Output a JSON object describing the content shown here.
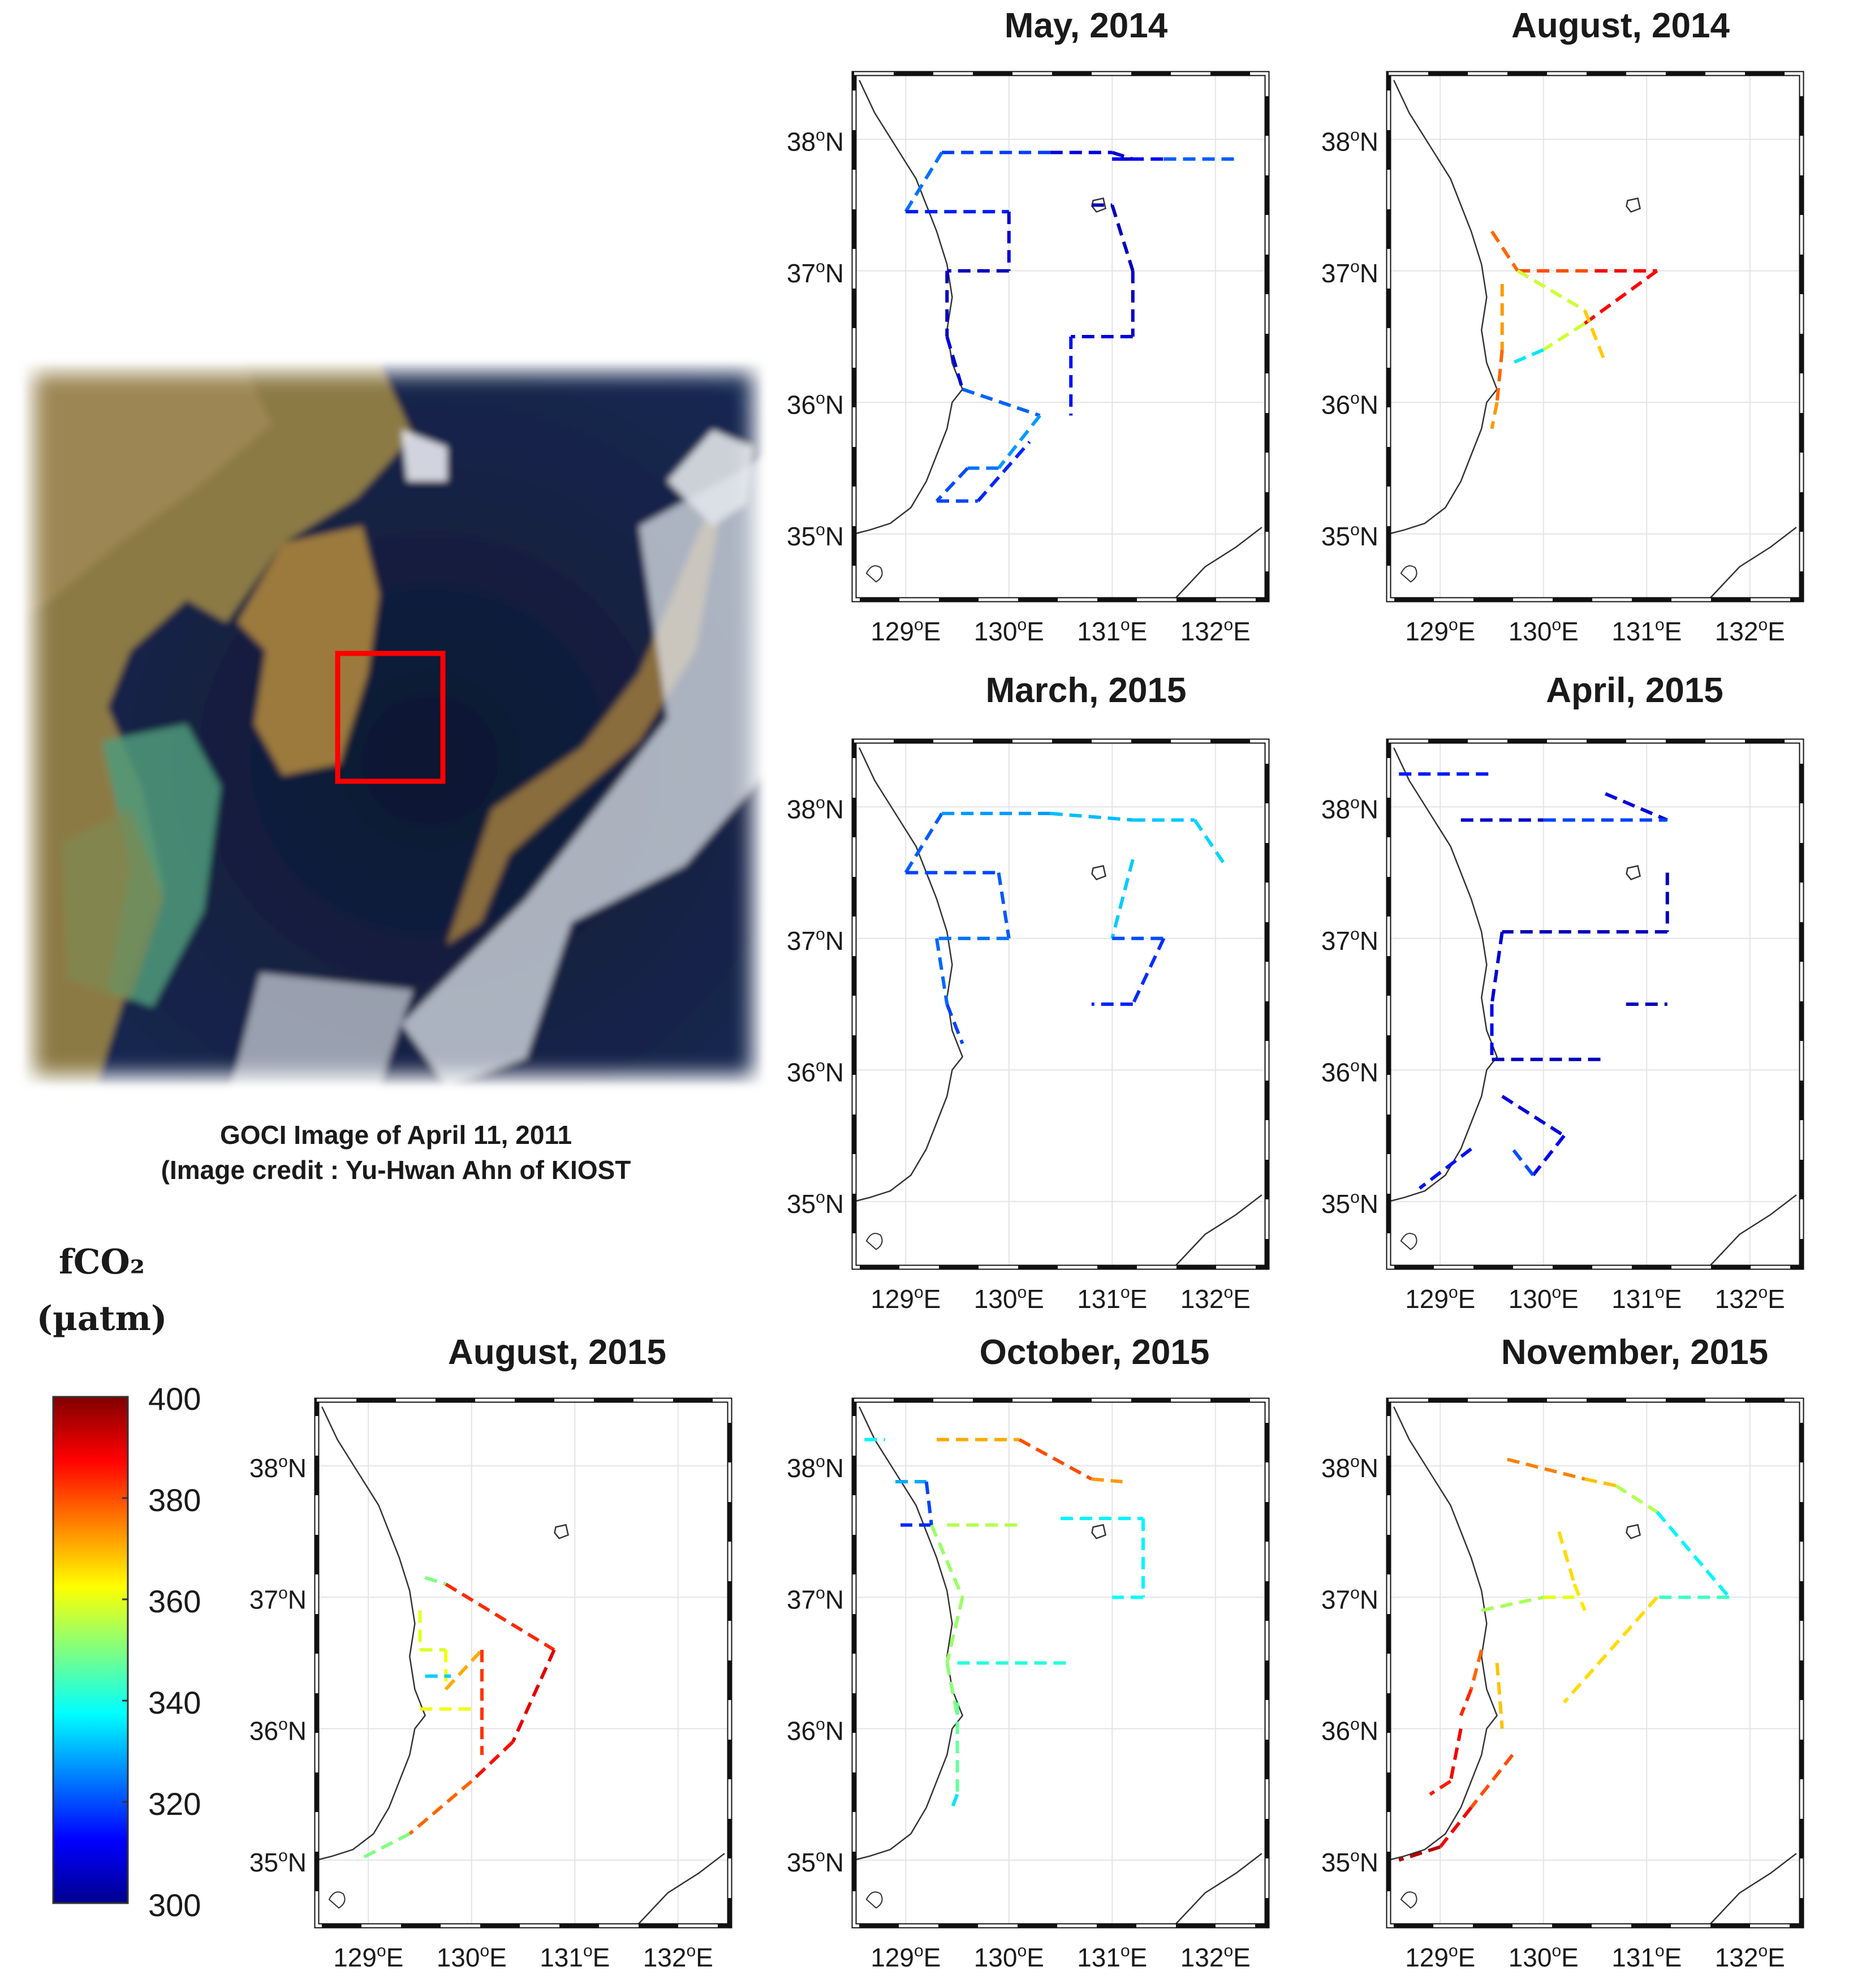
{
  "figure": {
    "caption": {
      "line1": "GOCI Image of April 11, 2011",
      "line2": "(Image credit : Yu-Hwan Ahn of KIOST"
    },
    "colorbar": {
      "quantity": "fCO₂",
      "unit": "(µatm)",
      "range": [
        300,
        400
      ],
      "ticks": [
        "400",
        "380",
        "360",
        "340",
        "320",
        "300"
      ],
      "colormap": [
        "#00008f",
        "#0000ff",
        "#0080ff",
        "#00ffff",
        "#80ff80",
        "#ffff00",
        "#ff8000",
        "#ff0000",
        "#800000"
      ]
    },
    "satellite_image": {
      "subject": "GOCI satellite image of Korea, Japan and East Sea",
      "highlight_color": "#ff0000"
    },
    "axis_labels": {
      "lat": [
        "38",
        "37",
        "36",
        "35"
      ],
      "lat_suffix": "N",
      "lon": [
        "129",
        "130",
        "131",
        "132"
      ],
      "lon_suffix": "E",
      "degree": "o"
    },
    "chart_data": [
      {
        "type": "scatter",
        "title": "May, 2014",
        "xlim": [
          128.5,
          132.5
        ],
        "ylim": [
          34.5,
          38.5
        ],
        "tracks": [
          {
            "lon": [
              129.0,
              129.35,
              130.4,
              131.0,
              131.2,
              131.0,
              131.5,
              132.2
            ],
            "lat": [
              37.45,
              37.9,
              37.9,
              37.9,
              37.85,
              37.85,
              37.85,
              37.85
            ],
            "fco2": [
              322,
              325,
              312,
              305,
              308,
              304,
              318,
              325
            ]
          },
          {
            "lon": [
              129.0,
              130.0,
              130.0,
              129.4,
              129.4,
              129.55
            ],
            "lat": [
              37.45,
              37.45,
              37.0,
              37.0,
              36.5,
              36.1
            ],
            "fco2": [
              320,
              310,
              306,
              304,
              308,
              310
            ]
          },
          {
            "lon": [
              130.8,
              131.0,
              131.2,
              131.2,
              130.6,
              130.6
            ],
            "lat": [
              37.5,
              37.5,
              37.0,
              36.5,
              36.5,
              35.9
            ],
            "fco2": [
              304,
              304,
              306,
              306,
              310,
              318
            ]
          },
          {
            "lon": [
              129.55,
              130.3,
              129.9,
              129.6,
              129.3,
              129.7,
              130.2
            ],
            "lat": [
              36.1,
              35.9,
              35.5,
              35.5,
              35.25,
              35.25,
              35.7
            ],
            "fco2": [
              314,
              330,
              325,
              322,
              318,
              320,
              312
            ]
          }
        ]
      },
      {
        "type": "scatter",
        "title": "August, 2014",
        "xlim": [
          128.5,
          132.5
        ],
        "ylim": [
          34.5,
          38.5
        ],
        "tracks": [
          {
            "lon": [
              129.5,
              129.75,
              130.5,
              131.1
            ],
            "lat": [
              37.3,
              37.0,
              37.0,
              37.0
            ],
            "fco2": [
              380,
              375,
              385,
              392
            ]
          },
          {
            "lon": [
              131.1,
              130.4,
              130.0,
              129.7
            ],
            "lat": [
              37.0,
              36.6,
              36.4,
              36.3
            ],
            "fco2": [
              390,
              385,
              330,
              340
            ]
          },
          {
            "lon": [
              129.75,
              130.4,
              130.6
            ],
            "lat": [
              37.0,
              36.7,
              36.3
            ],
            "fco2": [
              360,
              355,
              380
            ]
          },
          {
            "lon": [
              129.6,
              129.6,
              129.55,
              129.5
            ],
            "lat": [
              36.9,
              36.4,
              36.0,
              35.8
            ],
            "fco2": [
              370,
              375,
              380,
              365
            ]
          }
        ]
      },
      {
        "type": "scatter",
        "title": "March, 2015",
        "xlim": [
          128.5,
          132.5
        ],
        "ylim": [
          34.5,
          38.5
        ],
        "tracks": [
          {
            "lon": [
              129.0,
              129.35,
              130.4,
              131.2,
              131.8,
              132.1
            ],
            "lat": [
              37.5,
              37.95,
              37.95,
              37.9,
              37.9,
              37.55
            ],
            "fco2": [
              318,
              325,
              330,
              332,
              332,
              335
            ]
          },
          {
            "lon": [
              129.0,
              129.9,
              130.0,
              129.3,
              129.4,
              129.55
            ],
            "lat": [
              37.5,
              37.5,
              37.0,
              37.0,
              36.5,
              36.2
            ],
            "fco2": [
              318,
              320,
              322,
              325,
              320,
              318
            ]
          },
          {
            "lon": [
              131.2,
              131.0,
              131.0,
              131.5
            ],
            "lat": [
              37.6,
              37.0,
              37.0,
              37.0
            ],
            "fco2": [
              335,
              330,
              322,
              318
            ]
          },
          {
            "lon": [
              131.5,
              131.2,
              130.8
            ],
            "lat": [
              37.0,
              36.5,
              36.5
            ],
            "fco2": [
              318,
              316,
              316
            ]
          }
        ]
      },
      {
        "type": "scatter",
        "title": "April, 2015",
        "xlim": [
          128.5,
          132.5
        ],
        "ylim": [
          34.5,
          38.5
        ],
        "tracks": [
          {
            "lon": [
              128.6,
              129.5
            ],
            "lat": [
              38.25,
              38.25
            ],
            "fco2": [
              325,
              305
            ]
          },
          {
            "lon": [
              130.6,
              131.2
            ],
            "lat": [
              38.1,
              37.9
            ],
            "fco2": [
              305,
              312
            ]
          },
          {
            "lon": [
              129.2,
              130.0,
              131.2
            ],
            "lat": [
              37.9,
              37.9,
              37.9
            ],
            "fco2": [
              305,
              308,
              330
            ]
          },
          {
            "lon": [
              131.2,
              131.2,
              129.6,
              129.5,
              129.5
            ],
            "lat": [
              37.5,
              37.05,
              37.05,
              36.5,
              36.1
            ],
            "fco2": [
              305,
              305,
              305,
              310,
              312
            ]
          },
          {
            "lon": [
              129.5,
              130.6
            ],
            "lat": [
              36.08,
              36.08
            ],
            "fco2": [
              305,
              305
            ]
          },
          {
            "lon": [
              130.8,
              131.2
            ],
            "lat": [
              36.5,
              36.5
            ],
            "fco2": [
              305,
              305
            ]
          },
          {
            "lon": [
              129.6,
              130.2,
              129.9,
              129.7
            ],
            "lat": [
              35.8,
              35.5,
              35.2,
              35.4
            ],
            "fco2": [
              305,
              312,
              310,
              330
            ]
          },
          {
            "lon": [
              129.3,
              128.8
            ],
            "lat": [
              35.4,
              35.1
            ],
            "fco2": [
              318,
              310
            ]
          }
        ]
      },
      {
        "type": "scatter",
        "title": "August, 2015",
        "xlim": [
          128.5,
          132.5
        ],
        "ylim": [
          34.5,
          38.5
        ],
        "tracks": [
          {
            "lon": [
              129.55,
              129.75,
              130.8,
              130.4,
              130.0,
              129.4,
              128.9
            ],
            "lat": [
              37.15,
              37.1,
              36.6,
              35.9,
              35.6,
              35.2,
              35.0
            ],
            "fco2": [
              325,
              375,
              392,
              388,
              385,
              370,
              330
            ]
          },
          {
            "lon": [
              129.5,
              129.5,
              129.75,
              129.75,
              130.1,
              130.1
            ],
            "lat": [
              36.9,
              36.6,
              36.6,
              36.3,
              36.6,
              35.8
            ],
            "fco2": [
              362,
              358,
              360,
              362,
              380,
              385
            ]
          },
          {
            "lon": [
              129.55,
              129.8
            ],
            "lat": [
              36.4,
              36.4
            ],
            "fco2": [
              330,
              335
            ]
          },
          {
            "lon": [
              129.5,
              130.0
            ],
            "lat": [
              36.15,
              36.15
            ],
            "fco2": [
              362,
              360
            ]
          }
        ]
      },
      {
        "type": "scatter",
        "title": "October, 2015",
        "xlim": [
          128.5,
          132.5
        ],
        "ylim": [
          34.5,
          38.5
        ],
        "tracks": [
          {
            "lon": [
              129.3,
              130.1,
              130.8,
              131.1
            ],
            "lat": [
              38.2,
              38.2,
              37.9,
              37.88
            ],
            "fco2": [
              372,
              370,
              390,
              355
            ]
          },
          {
            "lon": [
              128.6,
              128.8
            ],
            "lat": [
              38.2,
              38.2
            ],
            "fco2": [
              335,
              338
            ]
          },
          {
            "lon": [
              128.9,
              129.2,
              129.25,
              128.95
            ],
            "lat": [
              37.88,
              37.88,
              37.55,
              37.55
            ],
            "fco2": [
              330,
              328,
              310,
              322
            ]
          },
          {
            "lon": [
              129.25,
              129.55,
              129.4,
              129.5
            ],
            "lat": [
              37.55,
              37.0,
              36.5,
              36.1
            ],
            "fco2": [
              350,
              355,
              350,
              352
            ]
          },
          {
            "lon": [
              129.4,
              130.1
            ],
            "lat": [
              37.55,
              37.55
            ],
            "fco2": [
              358,
              352
            ]
          },
          {
            "lon": [
              130.5,
              131.3,
              131.3,
              131.0
            ],
            "lat": [
              37.6,
              37.6,
              37.0,
              37.0
            ],
            "fco2": [
              335,
              338,
              335,
              340
            ]
          },
          {
            "lon": [
              129.5,
              130.6
            ],
            "lat": [
              36.5,
              36.5
            ],
            "fco2": [
              342,
              340
            ]
          },
          {
            "lon": [
              129.5,
              129.5,
              129.45
            ],
            "lat": [
              36.2,
              35.5,
              35.4
            ],
            "fco2": [
              355,
              340,
              330
            ]
          }
        ]
      },
      {
        "type": "scatter",
        "title": "November, 2015",
        "xlim": [
          128.5,
          132.5
        ],
        "ylim": [
          34.5,
          38.5
        ],
        "tracks": [
          {
            "lon": [
              129.65,
              130.4,
              130.7,
              131.1
            ],
            "lat": [
              38.05,
              37.9,
              37.85,
              37.65
            ],
            "fco2": [
              378,
              372,
              365,
              345
            ]
          },
          {
            "lon": [
              130.15,
              130.3,
              130.4
            ],
            "lat": [
              37.5,
              37.1,
              36.9
            ],
            "fco2": [
              370,
              362,
              368
            ]
          },
          {
            "lon": [
              131.1,
              131.8,
              131.1
            ],
            "lat": [
              37.65,
              37.0,
              37.0
            ],
            "fco2": [
              338,
              335,
              352
            ]
          },
          {
            "lon": [
              131.1,
              130.2
            ],
            "lat": [
              37.0,
              36.2
            ],
            "fco2": [
              360,
              372
            ]
          },
          {
            "lon": [
              129.4,
              130.0,
              130.3
            ],
            "lat": [
              36.9,
              37.0,
              37.0
            ],
            "fco2": [
              350,
              358,
              362
            ]
          },
          {
            "lon": [
              129.4,
              129.3,
              129.2
            ],
            "lat": [
              36.6,
              36.3,
              36.1
            ],
            "fco2": [
              375,
              380,
              388
            ]
          },
          {
            "lon": [
              129.55,
              129.6
            ],
            "lat": [
              36.5,
              36.0
            ],
            "fco2": [
              365,
              372
            ]
          },
          {
            "lon": [
              129.2,
              129.1,
              128.9
            ],
            "lat": [
              36.0,
              35.6,
              35.5
            ],
            "fco2": [
              385,
              392,
              378
            ]
          },
          {
            "lon": [
              129.7,
              129.3,
              129.0,
              128.6
            ],
            "lat": [
              35.8,
              35.4,
              35.1,
              35.0
            ],
            "fco2": [
              375,
              385,
              392,
              398
            ]
          }
        ]
      }
    ]
  }
}
